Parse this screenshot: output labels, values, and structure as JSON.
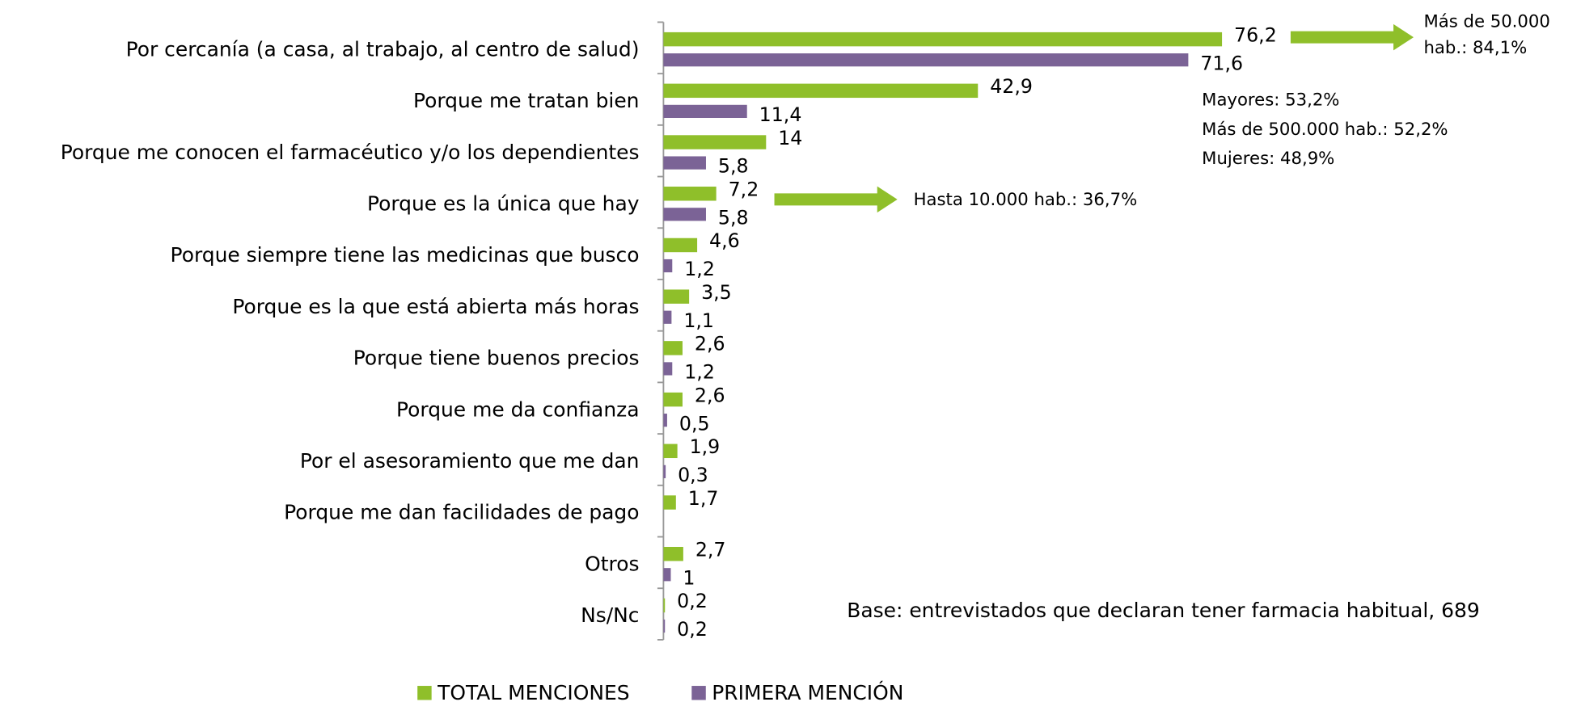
{
  "chart_data": {
    "type": "bar",
    "orientation": "horizontal",
    "categories": [
      "Por cercanía (a casa, al trabajo, al centro de salud)",
      "Porque me tratan bien",
      "Porque me conocen el farmacéutico y/o los dependientes",
      "Porque es la única que hay",
      "Porque siempre tiene las medicinas que busco",
      "Porque es la que está abierta más horas",
      "Porque tiene buenos precios",
      "Porque me da confianza",
      "Por el asesoramiento que me dan",
      "Porque me dan facilidades de pago",
      "Otros",
      "Ns/Nc"
    ],
    "series": [
      {
        "name": "TOTAL MENCIONES",
        "color": "#8fbf2a",
        "values": [
          76.2,
          42.9,
          14,
          7.2,
          4.6,
          3.5,
          2.6,
          2.6,
          1.9,
          1.7,
          2.7,
          0.2
        ],
        "value_labels": [
          "76,2",
          "42,9",
          "14",
          "7,2",
          "4,6",
          "3,5",
          "2,6",
          "2,6",
          "1,9",
          "1,7",
          "2,7",
          "0,2"
        ]
      },
      {
        "name": "PRIMERA MENCIÓN",
        "color": "#7b6396",
        "values": [
          71.6,
          11.4,
          5.8,
          5.8,
          1.2,
          1.1,
          1.2,
          0.5,
          0.3,
          null,
          1,
          0.2
        ],
        "value_labels": [
          "71,6",
          "11,4",
          "5,8",
          "5,8",
          "1,2",
          "1,1",
          "1,2",
          "0,5",
          "0,3",
          null,
          "1",
          "0,2"
        ]
      }
    ],
    "xlim": [
      0,
      100
    ],
    "annotations": [
      "Más de 50.000",
      "hab.: 84,1%",
      "Mayores: 53,2%",
      "Más de 500.000 hab.: 52,2%",
      "Mujeres: 48,9%",
      "Hasta 10.000 hab.: 36,7%",
      "Base: entrevistados que declaran tener farmacia habitual, 689"
    ]
  }
}
